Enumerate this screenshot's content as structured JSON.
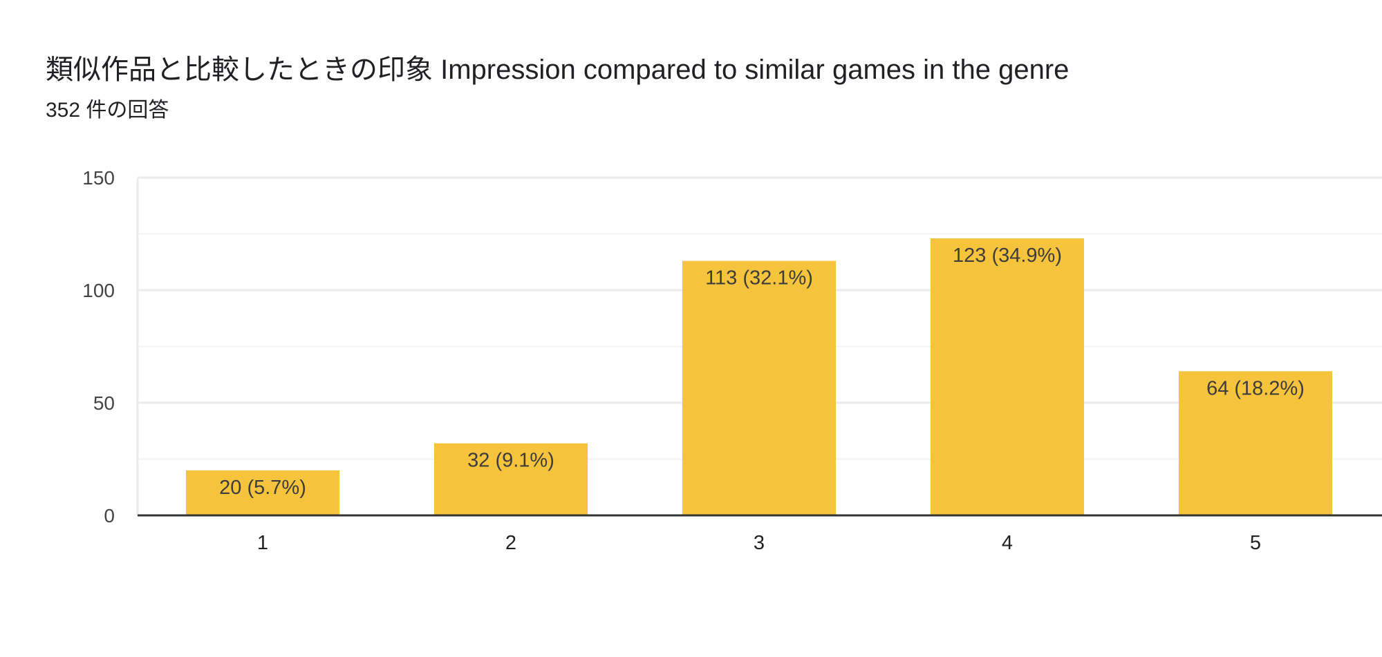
{
  "header": {
    "title": "類似作品と比較したときの印象 Impression compared to similar games in the genre",
    "response_count": "352 件の回答"
  },
  "chart_data": {
    "type": "bar",
    "title": "類似作品と比較したときの印象 Impression compared to similar games in the genre",
    "subtitle": "352 件の回答",
    "categories": [
      "1",
      "2",
      "3",
      "4",
      "5"
    ],
    "values": [
      20,
      32,
      113,
      123,
      64
    ],
    "data_labels": [
      "20 (5.7%)",
      "32 (9.1%)",
      "113 (32.1%)",
      "123 (34.9%)",
      "64 (18.2%)"
    ],
    "xlabel": "",
    "ylabel": "",
    "ylim": [
      0,
      150
    ],
    "yticks": [
      0,
      50,
      100,
      150
    ],
    "grid": true,
    "legend": "none",
    "colors": {
      "bar": "#F6C33D",
      "gridline": "#EBEBEB",
      "minor_gridline": "#F3F3F3",
      "axis": "#333333"
    }
  }
}
